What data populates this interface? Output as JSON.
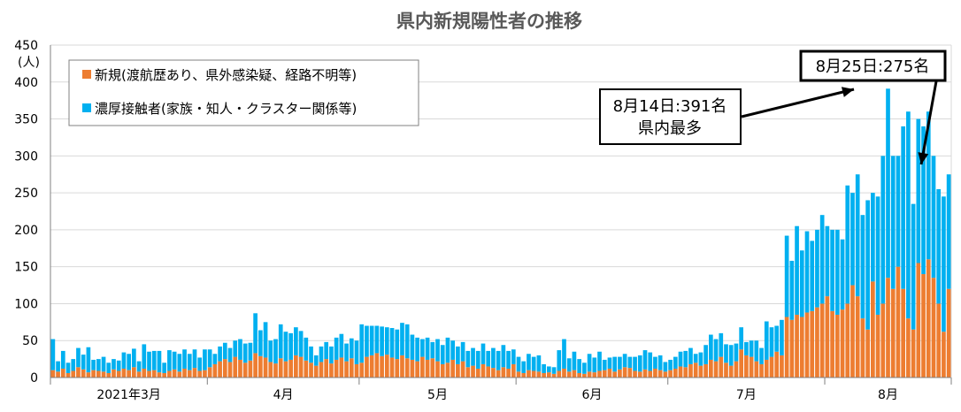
{
  "chart_data": {
    "type": "bar",
    "stacked": true,
    "title": "県内新規陽性者の推移",
    "ylabel_unit": "(人)",
    "ylim": [
      0,
      450
    ],
    "yticks": [
      "0",
      "50",
      "100",
      "150",
      "200",
      "250",
      "300",
      "350",
      "400",
      "450"
    ],
    "grid": "horizontal",
    "legend_position": "top-left",
    "month_labels": [
      "2021年3月",
      "4月",
      "5月",
      "6月",
      "7月",
      "8月"
    ],
    "month_start_index": [
      0,
      31,
      61,
      92,
      122,
      153
    ],
    "num_days": 178,
    "colors": {
      "new": "#ED7D31",
      "contact": "#00B0F0",
      "grid": "#D9D9D9",
      "axis": "#808080"
    },
    "series": [
      {
        "name": "新規(渡航歴あり、県外感染疑、経路不明等)",
        "values": [
          10,
          8,
          12,
          6,
          9,
          14,
          11,
          7,
          10,
          9,
          8,
          6,
          11,
          9,
          12,
          10,
          14,
          8,
          12,
          9,
          10,
          7,
          6,
          9,
          11,
          8,
          12,
          10,
          13,
          9,
          10,
          14,
          18,
          22,
          25,
          21,
          28,
          24,
          20,
          23,
          33,
          29,
          27,
          21,
          19,
          26,
          22,
          24,
          30,
          28,
          23,
          20,
          16,
          21,
          25,
          19,
          24,
          27,
          22,
          26,
          18,
          20,
          28,
          30,
          33,
          29,
          31,
          27,
          25,
          30,
          26,
          24,
          22,
          28,
          24,
          26,
          22,
          18,
          20,
          24,
          18,
          22,
          14,
          16,
          12,
          18,
          15,
          13,
          10,
          14,
          12,
          18,
          8,
          6,
          10,
          9,
          8,
          6,
          7,
          5,
          9,
          12,
          8,
          10,
          6,
          5,
          8,
          7,
          9,
          10,
          12,
          8,
          11,
          14,
          13,
          9,
          8,
          11,
          9,
          12,
          10,
          8,
          10,
          12,
          15,
          14,
          18,
          20,
          16,
          18,
          24,
          22,
          28,
          20,
          16,
          22,
          38,
          30,
          28,
          22,
          18,
          24,
          28,
          35,
          30,
          82,
          78,
          85,
          82,
          88,
          90,
          95,
          100,
          110,
          90,
          85,
          92,
          100,
          125,
          110,
          80,
          65,
          130,
          85,
          100,
          135,
          120,
          150,
          120,
          80,
          65,
          155,
          140,
          160,
          135,
          100,
          62,
          120
        ],
        "color": "#ED7D31"
      },
      {
        "name": "濃厚接触者(家族・知人・クラスター関係等)",
        "values": [
          42,
          14,
          24,
          14,
          16,
          26,
          20,
          34,
          14,
          16,
          20,
          14,
          14,
          14,
          22,
          22,
          25,
          14,
          33,
          26,
          26,
          29,
          14,
          28,
          24,
          24,
          26,
          22,
          25,
          18,
          28,
          24,
          14,
          20,
          22,
          19,
          22,
          28,
          26,
          24,
          54,
          35,
          48,
          29,
          33,
          46,
          40,
          36,
          38,
          35,
          31,
          22,
          14,
          21,
          23,
          23,
          30,
          32,
          24,
          27,
          32,
          52,
          42,
          40,
          37,
          40,
          37,
          40,
          40,
          44,
          46,
          34,
          32,
          24,
          30,
          22,
          30,
          26,
          34,
          26,
          24,
          26,
          22,
          24,
          24,
          28,
          21,
          27,
          26,
          30,
          24,
          20,
          20,
          16,
          22,
          19,
          22,
          12,
          8,
          9,
          28,
          40,
          18,
          25,
          19,
          15,
          24,
          20,
          26,
          14,
          15,
          20,
          17,
          18,
          15,
          19,
          22,
          26,
          25,
          16,
          20,
          13,
          14,
          16,
          20,
          22,
          22,
          12,
          18,
          26,
          34,
          30,
          32,
          25,
          28,
          24,
          30,
          18,
          22,
          28,
          22,
          52,
          40,
          35,
          48,
          110,
          80,
          120,
          90,
          110,
          95,
          105,
          120,
          95,
          110,
          115,
          95,
          160,
          125,
          165,
          140,
          175,
          120,
          160,
          200,
          256,
          180,
          150,
          220,
          280,
          170,
          195,
          200,
          200,
          165,
          155,
          183,
          155
        ]
      }
    ],
    "annotations": [
      {
        "text": "8月14日:391名",
        "text2": "県内最多",
        "day_index": 165
      },
      {
        "text": "8月25日:275名",
        "day_index": 176
      }
    ]
  }
}
